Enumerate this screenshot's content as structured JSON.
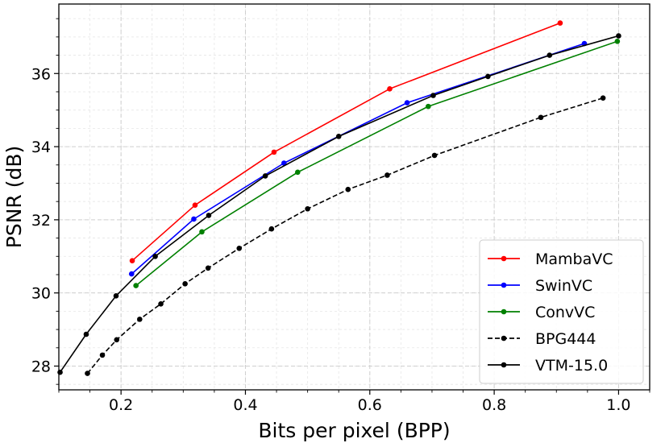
{
  "chart_data": {
    "type": "line",
    "title": "",
    "xlabel": "Bits per pixel (BPP)",
    "ylabel": "PSNR (dB)",
    "xlim": [
      0.1,
      1.05
    ],
    "ylim": [
      27.35,
      37.9
    ],
    "xticks": [
      0.2,
      0.4,
      0.6,
      0.8,
      1.0
    ],
    "xtick_labels": [
      "0.2",
      "0.4",
      "0.6",
      "0.8",
      "1.0"
    ],
    "yticks": [
      28,
      30,
      32,
      34,
      36
    ],
    "ytick_labels": [
      "28",
      "30",
      "32",
      "34",
      "36"
    ],
    "grid": true,
    "legend_position": "bottom-right",
    "series": [
      {
        "name": "MambaVC",
        "color": "#ff0000",
        "dash": "solid",
        "x": [
          0.218,
          0.319,
          0.446,
          0.632,
          0.906
        ],
        "y": [
          30.88,
          32.4,
          33.85,
          35.58,
          37.38
        ]
      },
      {
        "name": "SwinVC",
        "color": "#0000ff",
        "dash": "solid",
        "x": [
          0.217,
          0.317,
          0.462,
          0.66,
          0.945
        ],
        "y": [
          30.52,
          32.02,
          33.55,
          35.2,
          36.82
        ]
      },
      {
        "name": "ConvVC",
        "color": "#008000",
        "dash": "solid",
        "x": [
          0.224,
          0.33,
          0.484,
          0.694,
          0.998
        ],
        "y": [
          30.2,
          31.67,
          33.3,
          35.1,
          36.88
        ]
      },
      {
        "name": "BPG444",
        "color": "#000000",
        "dash": "dashed",
        "x": [
          0.146,
          0.17,
          0.193,
          0.23,
          0.264,
          0.303,
          0.34,
          0.39,
          0.442,
          0.5,
          0.565,
          0.628,
          0.704,
          0.875,
          0.975
        ],
        "y": [
          27.8,
          28.3,
          28.72,
          29.28,
          29.7,
          30.25,
          30.68,
          31.22,
          31.75,
          32.3,
          32.83,
          33.22,
          33.76,
          34.8,
          35.33
        ]
      },
      {
        "name": "VTM-15.0",
        "color": "#000000",
        "dash": "solid",
        "x": [
          0.102,
          0.144,
          0.192,
          0.255,
          0.341,
          0.432,
          0.55,
          0.702,
          0.79,
          0.889,
          1.0
        ],
        "y": [
          27.83,
          28.87,
          29.92,
          31.0,
          32.12,
          33.2,
          34.28,
          35.4,
          35.92,
          36.5,
          37.03
        ]
      }
    ]
  }
}
